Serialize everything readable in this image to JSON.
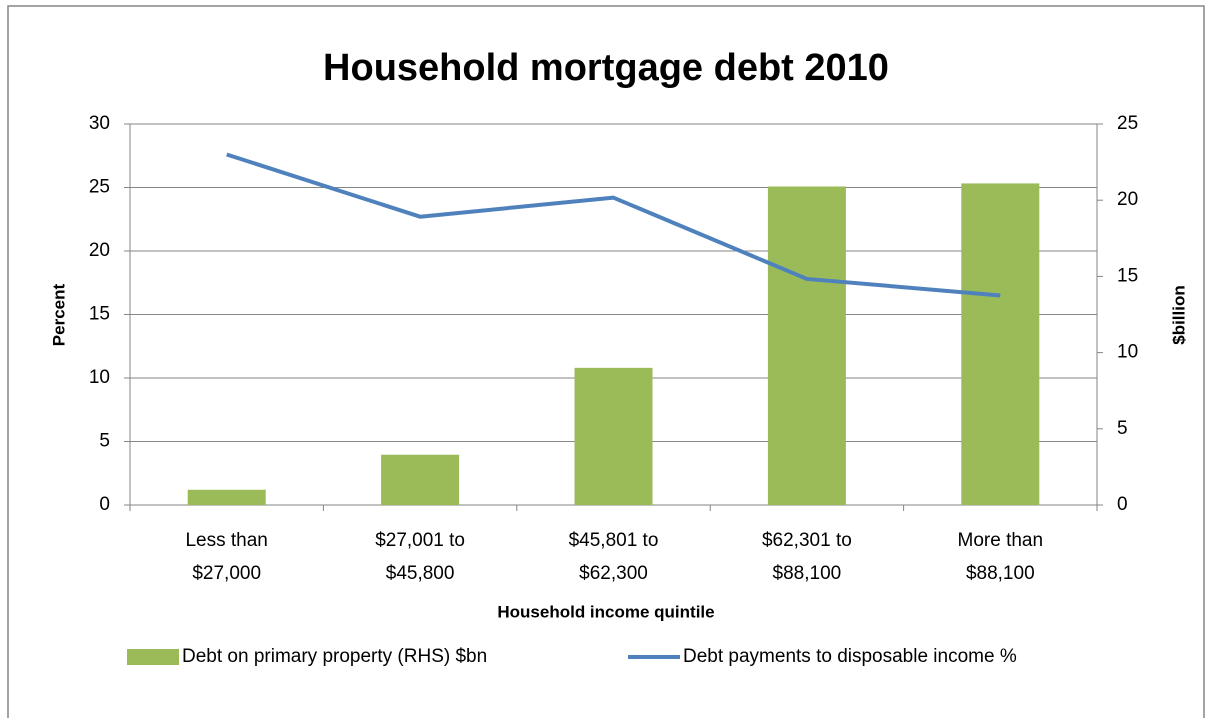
{
  "chart_data": {
    "type": "bar-line",
    "title": "Household mortgage debt 2010",
    "x_label": "Household income quintile",
    "y_label": "Percent",
    "y2_label": "$billion",
    "categories": [
      [
        "Less than",
        "$27,000"
      ],
      [
        "$27,001 to",
        "$45,800"
      ],
      [
        "$45,801 to",
        "$62,300"
      ],
      [
        "$62,301 to",
        "$88,100"
      ],
      [
        "More than",
        "$88,100"
      ]
    ],
    "series": [
      {
        "name": "Debt on primary property (RHS) $bn",
        "type": "bar",
        "axis": "y2",
        "color": "#9bbb59",
        "values": [
          1.0,
          3.3,
          9.0,
          20.9,
          21.1
        ]
      },
      {
        "name": "Debt payments to disposable income %",
        "type": "line",
        "color": "#4f81bd",
        "values": [
          27.6,
          22.7,
          24.2,
          17.8,
          16.5
        ]
      }
    ],
    "ylim": [
      0,
      30
    ],
    "yticks": [
      0,
      5,
      10,
      15,
      20,
      25,
      30
    ],
    "y2lim": [
      0,
      25
    ],
    "y2ticks": [
      0,
      5,
      10,
      15,
      20,
      25
    ],
    "grid": true,
    "legend": "bottom"
  }
}
